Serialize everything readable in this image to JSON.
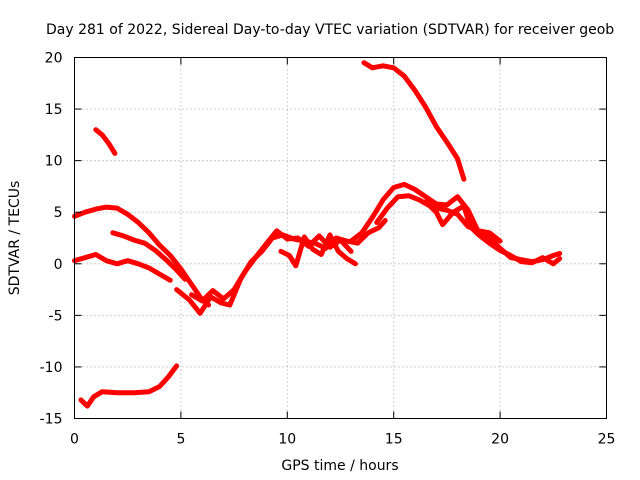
{
  "chart_data": {
    "type": "line",
    "title": "Day 281 of 2022, Sidereal Day-to-day VTEC variation (SDTVAR) for receiver geob",
    "xlabel": "GPS time / hours",
    "ylabel": "SDTVAR / TECUs",
    "xlim": [
      0,
      25
    ],
    "ylim": [
      -15,
      20
    ],
    "xticks": [
      0,
      5,
      10,
      15,
      20,
      25
    ],
    "yticks": [
      -15,
      -10,
      -5,
      0,
      5,
      10,
      15,
      20
    ],
    "xtick_labels": [
      "0",
      "5",
      "10",
      "15",
      "20",
      "25"
    ],
    "ytick_labels": [
      "-15",
      "-10",
      "-5",
      "0",
      "5",
      "10",
      "15",
      "20"
    ],
    "grid": true,
    "color": "#ff0000",
    "series": [
      {
        "name": "arc-upper-left",
        "x": [
          1.0,
          1.3,
          1.6,
          1.9
        ],
        "y": [
          13.0,
          12.5,
          11.7,
          10.7
        ]
      },
      {
        "name": "arc-lower-left",
        "x": [
          0.3,
          0.6,
          0.9,
          1.3,
          2.0,
          2.8,
          3.5,
          4.0,
          4.4,
          4.8
        ],
        "y": [
          -13.2,
          -13.8,
          -12.9,
          -12.4,
          -12.5,
          -12.5,
          -12.4,
          -11.9,
          -11.0,
          -9.9
        ]
      },
      {
        "name": "arc-5",
        "x": [
          0.0,
          0.5,
          1.0,
          1.5,
          2.0,
          2.5,
          3.0,
          3.5,
          4.0,
          4.5,
          5.0,
          5.5,
          6.0,
          6.3
        ],
        "y": [
          4.6,
          5.0,
          5.3,
          5.5,
          5.4,
          4.8,
          4.0,
          3.0,
          1.8,
          0.8,
          -0.5,
          -2.0,
          -3.5,
          -4.0
        ]
      },
      {
        "name": "arc-0",
        "x": [
          0.0,
          0.5,
          1.0,
          1.5,
          2.0,
          2.5,
          3.0,
          3.5,
          4.0,
          4.5
        ],
        "y": [
          0.3,
          0.6,
          0.9,
          0.3,
          0.0,
          0.3,
          0.0,
          -0.4,
          -1.0,
          -1.6
        ]
      },
      {
        "name": "arc-3",
        "x": [
          1.8,
          2.3,
          2.8,
          3.3,
          3.8,
          4.3,
          4.8,
          5.2
        ],
        "y": [
          3.0,
          2.7,
          2.3,
          2.0,
          1.3,
          0.4,
          -0.6,
          -1.5
        ]
      },
      {
        "name": "arc-mid",
        "x": [
          4.8,
          5.4,
          5.9,
          6.4,
          6.9,
          7.3,
          7.8,
          8.3,
          8.8,
          9.3,
          9.8,
          10.3,
          10.8,
          11.3,
          11.8,
          12.3,
          12.8,
          13.3,
          13.8,
          14.3,
          14.6
        ],
        "y": [
          -2.5,
          -3.5,
          -4.8,
          -3.2,
          -3.8,
          -4.0,
          -1.5,
          0.2,
          1.2,
          2.5,
          2.8,
          2.4,
          2.2,
          2.0,
          1.5,
          2.5,
          2.2,
          2.0,
          3.0,
          3.5,
          4.2
        ]
      },
      {
        "name": "arc-mid-2",
        "x": [
          5.5,
          6.0,
          6.5,
          7.0,
          7.5,
          8.0,
          8.5,
          9.0,
          9.5,
          10.0,
          10.5,
          11.0,
          11.5,
          12.0,
          12.5,
          13.0
        ],
        "y": [
          -3.0,
          -3.6,
          -2.6,
          -3.4,
          -2.5,
          -0.8,
          0.6,
          1.9,
          3.2,
          2.4,
          2.5,
          1.7,
          2.7,
          1.6,
          2.3,
          1.2
        ]
      },
      {
        "name": "arc-mid-3",
        "x": [
          9.7,
          10.1,
          10.4,
          10.8,
          11.2,
          11.6,
          12.0,
          12.4,
          12.8,
          13.2
        ],
        "y": [
          1.2,
          0.8,
          -0.2,
          2.6,
          1.4,
          0.9,
          2.8,
          1.2,
          0.5,
          0.0
        ]
      },
      {
        "name": "arc-top-right",
        "x": [
          13.6,
          14.0,
          14.5,
          15.0,
          15.5,
          16.0,
          16.5,
          17.0,
          17.5,
          18.0,
          18.3
        ],
        "y": [
          19.5,
          19.0,
          19.2,
          19.0,
          18.2,
          16.8,
          15.2,
          13.3,
          11.8,
          10.2,
          8.2
        ]
      },
      {
        "name": "arc-hump",
        "x": [
          13.0,
          13.5,
          14.0,
          14.5,
          15.0,
          15.5,
          16.0,
          16.5,
          17.0,
          17.5,
          18.0,
          18.5,
          19.0,
          19.5,
          20.0,
          20.5,
          21.0,
          21.5,
          22.0,
          22.5,
          22.8
        ],
        "y": [
          2.2,
          3.0,
          4.5,
          6.2,
          7.4,
          7.7,
          7.2,
          6.5,
          5.8,
          5.7,
          6.5,
          5.2,
          3.0,
          2.5,
          1.5,
          0.6,
          0.4,
          0.2,
          0.4,
          0.8,
          1.0
        ]
      },
      {
        "name": "arc-hump-2",
        "x": [
          14.2,
          14.7,
          15.2,
          15.7,
          16.2,
          16.7,
          17.0,
          17.3,
          17.8,
          18.3,
          18.6,
          19.0,
          19.5,
          20.0,
          20.5,
          21.0,
          21.5,
          22.0,
          22.5,
          22.8
        ],
        "y": [
          4.0,
          5.4,
          6.5,
          6.6,
          6.2,
          5.6,
          5.0,
          3.8,
          5.0,
          5.6,
          3.6,
          2.8,
          2.0,
          1.3,
          0.8,
          0.2,
          0.1,
          0.6,
          0.0,
          0.5
        ]
      },
      {
        "name": "arc-hump-3",
        "x": [
          16.5,
          17.0,
          17.5,
          18.0,
          18.5,
          19.0,
          19.5,
          20.0
        ],
        "y": [
          6.0,
          5.4,
          5.2,
          4.8,
          3.6,
          3.2,
          3.0,
          2.2
        ]
      }
    ]
  }
}
